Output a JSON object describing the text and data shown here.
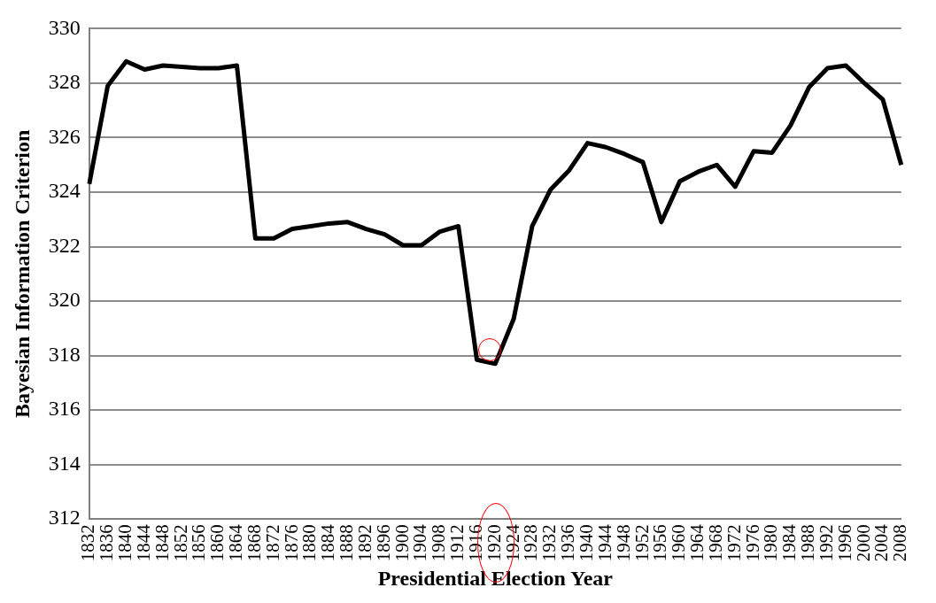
{
  "chart_data": {
    "type": "line",
    "xlabel": "Presidential Election Year",
    "ylabel": "Bayesian Information Criterion",
    "categories": [
      "1832",
      "1836",
      "1840",
      "1844",
      "1848",
      "1852",
      "1856",
      "1860",
      "1864",
      "1868",
      "1872",
      "1876",
      "1880",
      "1884",
      "1888",
      "1892",
      "1896",
      "1900",
      "1904",
      "1908",
      "1912",
      "1916",
      "1920",
      "1924",
      "1928",
      "1932",
      "1936",
      "1940",
      "1944",
      "1948",
      "1952",
      "1956",
      "1960",
      "1964",
      "1968",
      "1972",
      "1976",
      "1980",
      "1984",
      "1988",
      "1992",
      "1996",
      "2000",
      "2004",
      "2008"
    ],
    "series": [
      {
        "color": "#000000",
        "values": [
          324.3,
          327.9,
          328.8,
          328.5,
          328.65,
          328.6,
          328.55,
          328.55,
          328.65,
          322.3,
          322.3,
          322.65,
          322.75,
          322.85,
          322.9,
          322.65,
          322.45,
          322.05,
          322.05,
          322.55,
          322.75,
          317.85,
          317.7,
          319.35,
          322.75,
          324.1,
          324.8,
          325.8,
          325.65,
          325.4,
          325.1,
          322.9,
          324.4,
          324.75,
          325.0,
          324.2,
          325.5,
          325.45,
          326.45,
          327.85,
          328.55,
          328.65,
          328.0,
          327.4,
          325.0
        ]
      }
    ],
    "ylim": [
      312,
      330
    ],
    "yticks": [
      312,
      314,
      316,
      318,
      320,
      322,
      324,
      326,
      328,
      330
    ],
    "grid": "y",
    "legend": false,
    "marker": "none",
    "line_style": "solid"
  }
}
